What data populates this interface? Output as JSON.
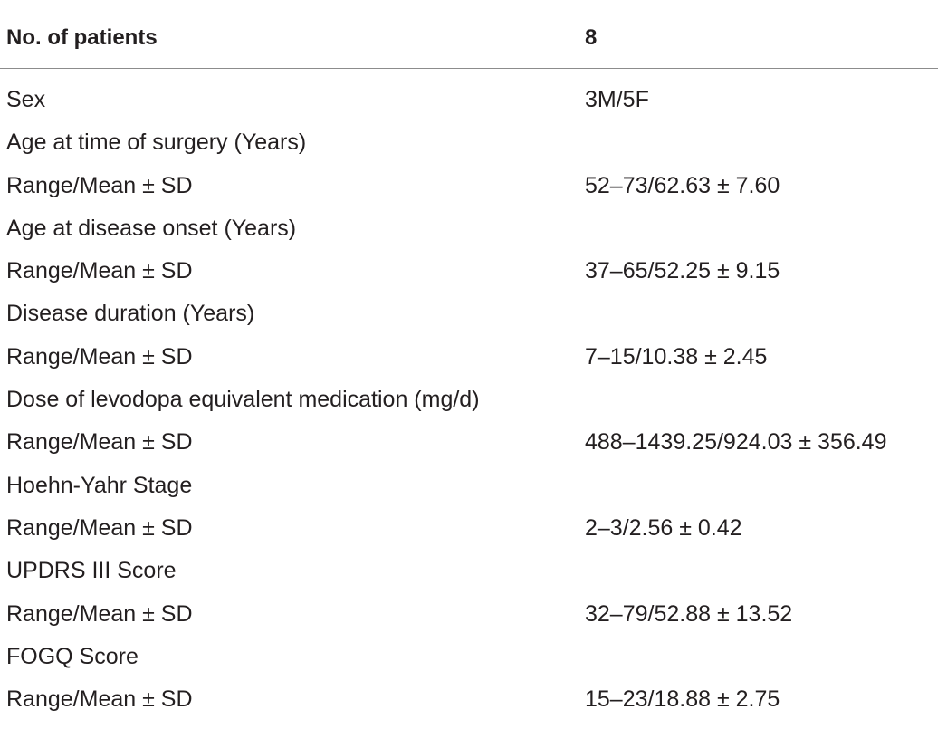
{
  "table": {
    "header": {
      "col1": "No. of patients",
      "col2": "8"
    },
    "rows": [
      {
        "label": "Sex",
        "value": "3M/5F"
      },
      {
        "label": "Age at time of surgery (Years)",
        "value": ""
      },
      {
        "label": "Range/Mean ± SD",
        "value": "52–73/62.63 ± 7.60"
      },
      {
        "label": "Age at disease onset (Years)",
        "value": ""
      },
      {
        "label": "Range/Mean ± SD",
        "value": "37–65/52.25 ± 9.15"
      },
      {
        "label": "Disease duration (Years)",
        "value": ""
      },
      {
        "label": "Range/Mean ± SD",
        "value": "7–15/10.38 ± 2.45"
      },
      {
        "label": "Dose of levodopa equivalent medication (mg/d)",
        "value": ""
      },
      {
        "label": "Range/Mean ± SD",
        "value": "488–1439.25/924.03 ± 356.49"
      },
      {
        "label": "Hoehn-Yahr Stage",
        "value": ""
      },
      {
        "label": "Range/Mean ± SD",
        "value": "2–3/2.56 ± 0.42"
      },
      {
        "label": "UPDRS III Score",
        "value": ""
      },
      {
        "label": "Range/Mean ± SD",
        "value": "32–79/52.88 ± 13.52"
      },
      {
        "label": "FOGQ Score",
        "value": ""
      },
      {
        "label": "Range/Mean ± SD",
        "value": "15–23/18.88 ± 2.75"
      }
    ]
  }
}
